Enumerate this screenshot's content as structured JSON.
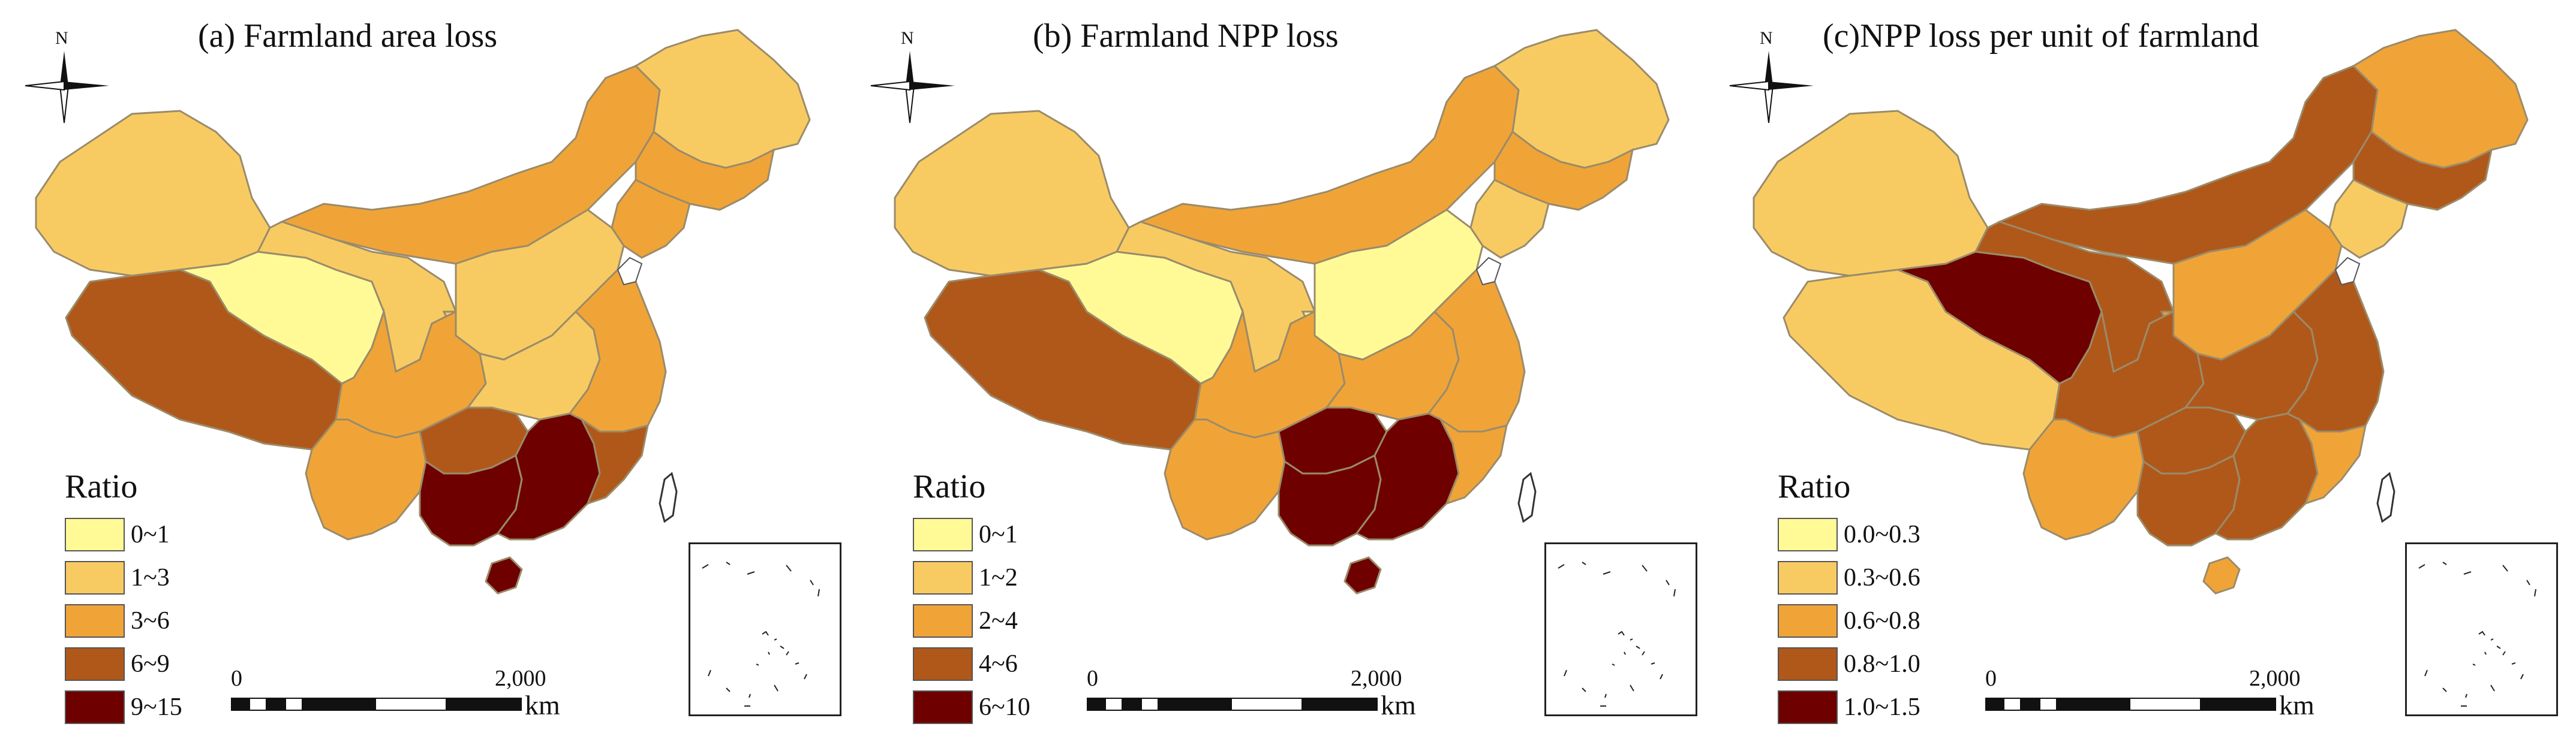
{
  "colors": {
    "c1": "#fffa96",
    "c2": "#f8cb62",
    "c3": "#f0a438",
    "c4": "#b0581a",
    "c5": "#6e0000",
    "outline": "#9a8b6a"
  },
  "panels": [
    {
      "title": "(a) Farmland area loss",
      "north": "N",
      "legend_title": "Ratio",
      "legend": [
        "0~1",
        "1~3",
        "3~6",
        "6~9",
        "9~15"
      ],
      "scale": {
        "zero": "0",
        "max": "2,000",
        "unit": "km"
      },
      "region_classes": {
        "xinjiang": 2,
        "tibet": 4,
        "qinghai": 1,
        "gansu": 2,
        "innerMongolia": 3,
        "heilongjiang": 2,
        "jilin": 3,
        "liaoning": 3,
        "north": 2,
        "sichuan": 3,
        "central": 2,
        "east": 3,
        "yunnan": 3,
        "guizhou": 4,
        "guangxi": 5,
        "guangdong": 5,
        "fujian": 4,
        "hainan": 5,
        "taiwan": 0
      }
    },
    {
      "title": "(b) Farmland NPP loss",
      "north": "N",
      "legend_title": "Ratio",
      "legend": [
        "0~1",
        "1~2",
        "2~4",
        "4~6",
        "6~10"
      ],
      "scale": {
        "zero": "0",
        "max": "2,000",
        "unit": "km"
      },
      "region_classes": {
        "xinjiang": 2,
        "tibet": 4,
        "qinghai": 1,
        "gansu": 2,
        "innerMongolia": 3,
        "heilongjiang": 2,
        "jilin": 3,
        "liaoning": 2,
        "north": 1,
        "sichuan": 3,
        "central": 3,
        "east": 3,
        "yunnan": 3,
        "guizhou": 5,
        "guangxi": 5,
        "guangdong": 5,
        "fujian": 3,
        "hainan": 5,
        "taiwan": 0
      }
    },
    {
      "title": "(c)NPP loss per unit of farmland",
      "north": "N",
      "legend_title": "Ratio",
      "legend": [
        "0.0~0.3",
        "0.3~0.6",
        "0.6~0.8",
        "0.8~1.0",
        "1.0~1.5"
      ],
      "scale": {
        "zero": "0",
        "max": "2,000",
        "unit": "km"
      },
      "region_classes": {
        "xinjiang": 2,
        "tibet": 2,
        "qinghai": 5,
        "gansu": 4,
        "innerMongolia": 4,
        "heilongjiang": 3,
        "jilin": 4,
        "liaoning": 2,
        "north": 3,
        "sichuan": 4,
        "central": 4,
        "east": 4,
        "yunnan": 3,
        "guizhou": 4,
        "guangxi": 4,
        "guangdong": 4,
        "fujian": 3,
        "hainan": 3,
        "taiwan": 0
      }
    }
  ]
}
